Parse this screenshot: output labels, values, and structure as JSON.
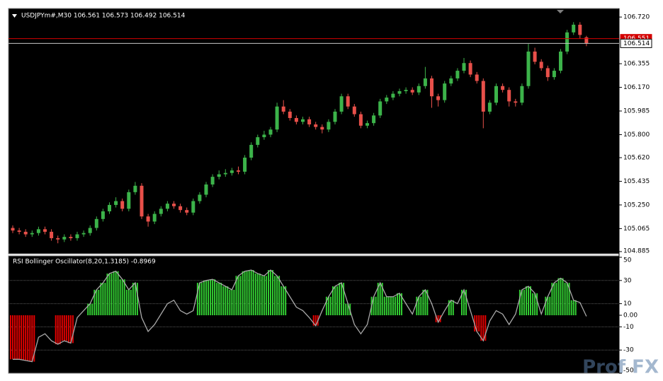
{
  "chart_data": [
    {
      "type": "candlestick",
      "title": "USDJPYm#,M30  106.561 106.573 106.492 106.514",
      "up_color": "#3cb34a",
      "down_color": "#e8504a",
      "ylim": [
        104.868,
        106.787
      ],
      "yticks": [
        {
          "value": 106.72,
          "label": "106.720"
        },
        106.355,
        {
          "value": 106.17,
          "label": "106.170"
        },
        105.985,
        {
          "value": 105.8,
          "label": "105.800"
        },
        {
          "value": 105.62,
          "label": "105.620"
        },
        105.435,
        {
          "value": 105.25,
          "label": "105.250"
        },
        105.065,
        104.885
      ],
      "price_lines": [
        {
          "value": 106.551,
          "color": "#d40000"
        },
        {
          "value": 106.514,
          "color": "#c8c8c8"
        }
      ],
      "open": [
        105.07,
        105.05,
        105.04,
        105.02,
        105.03,
        105.06,
        105.04,
        104.99,
        104.98,
        105.0,
        104.99,
        105.02,
        105.03,
        105.07,
        105.14,
        105.2,
        105.25,
        105.28,
        105.22,
        105.35,
        105.4,
        105.16,
        105.12,
        105.18,
        105.22,
        105.26,
        105.24,
        105.21,
        105.19,
        105.28,
        105.33,
        105.41,
        105.47,
        105.49,
        105.5,
        105.52,
        105.51,
        105.62,
        105.72,
        105.78,
        105.8,
        105.84,
        106.02,
        105.98,
        105.93,
        105.9,
        105.92,
        105.88,
        105.86,
        105.84,
        105.9,
        105.98,
        106.1,
        106.02,
        105.96,
        105.87,
        105.89,
        105.95,
        106.06,
        106.09,
        106.12,
        106.14,
        106.15,
        106.13,
        106.18,
        106.24,
        106.1,
        106.07,
        106.2,
        106.24,
        106.3,
        106.36,
        106.27,
        106.22,
        105.98,
        106.05,
        106.18,
        106.15,
        106.06,
        106.05,
        106.18,
        106.45,
        106.37,
        106.32,
        106.25,
        106.3,
        106.45,
        106.6,
        106.66,
        106.561
      ],
      "high": [
        105.09,
        105.07,
        105.06,
        105.05,
        105.08,
        105.08,
        105.06,
        105.01,
        105.02,
        105.02,
        105.04,
        105.05,
        105.09,
        105.16,
        105.22,
        105.27,
        105.31,
        105.3,
        105.37,
        105.43,
        105.42,
        105.18,
        105.2,
        105.24,
        105.28,
        105.28,
        105.26,
        105.23,
        105.3,
        105.35,
        105.43,
        105.49,
        105.52,
        105.53,
        105.54,
        105.55,
        105.64,
        105.74,
        105.8,
        105.83,
        105.86,
        106.05,
        106.07,
        106.0,
        105.95,
        105.94,
        105.94,
        105.9,
        105.88,
        105.92,
        106.0,
        106.12,
        106.12,
        106.04,
        105.98,
        105.91,
        105.97,
        106.08,
        106.11,
        106.14,
        106.16,
        106.17,
        106.17,
        106.2,
        106.33,
        106.26,
        106.12,
        106.22,
        106.26,
        106.32,
        106.4,
        106.38,
        106.29,
        106.24,
        106.07,
        106.2,
        106.2,
        106.17,
        106.08,
        106.2,
        106.51,
        106.48,
        106.39,
        106.34,
        106.32,
        106.47,
        106.62,
        106.68,
        106.68,
        106.573
      ],
      "low": [
        105.03,
        105.02,
        105.0,
        105.0,
        105.01,
        105.02,
        104.97,
        104.95,
        104.96,
        104.97,
        104.97,
        105.0,
        105.01,
        105.05,
        105.12,
        105.18,
        105.23,
        105.2,
        105.2,
        105.33,
        105.14,
        105.08,
        105.1,
        105.16,
        105.2,
        105.22,
        105.19,
        105.17,
        105.17,
        105.26,
        105.31,
        105.39,
        105.45,
        105.47,
        105.48,
        105.49,
        105.49,
        105.6,
        105.7,
        105.76,
        105.78,
        105.82,
        105.96,
        105.91,
        105.88,
        105.88,
        105.86,
        105.84,
        105.81,
        105.82,
        105.88,
        105.96,
        106.0,
        105.94,
        105.85,
        105.85,
        105.87,
        105.93,
        106.04,
        106.07,
        106.1,
        106.12,
        106.11,
        106.11,
        106.16,
        106.01,
        106.02,
        106.05,
        106.18,
        106.22,
        106.28,
        106.25,
        106.2,
        105.85,
        105.96,
        106.03,
        106.13,
        106.02,
        106.02,
        106.03,
        106.16,
        106.35,
        106.3,
        106.22,
        106.23,
        106.28,
        106.43,
        106.58,
        106.55,
        106.492
      ],
      "close": [
        105.05,
        105.04,
        105.02,
        105.03,
        105.06,
        105.04,
        104.99,
        104.98,
        105.0,
        104.99,
        105.02,
        105.03,
        105.07,
        105.14,
        105.2,
        105.25,
        105.28,
        105.22,
        105.35,
        105.4,
        105.16,
        105.12,
        105.18,
        105.22,
        105.26,
        105.24,
        105.21,
        105.19,
        105.28,
        105.33,
        105.41,
        105.47,
        105.49,
        105.5,
        105.52,
        105.51,
        105.62,
        105.72,
        105.78,
        105.8,
        105.84,
        106.02,
        105.98,
        105.93,
        105.9,
        105.92,
        105.88,
        105.86,
        105.84,
        105.9,
        105.98,
        106.1,
        106.02,
        105.96,
        105.87,
        105.89,
        105.95,
        106.06,
        106.09,
        106.12,
        106.14,
        106.15,
        106.13,
        106.18,
        106.24,
        106.1,
        106.07,
        106.2,
        106.24,
        106.3,
        106.36,
        106.27,
        106.22,
        105.98,
        106.05,
        106.18,
        106.15,
        106.06,
        106.05,
        106.18,
        106.45,
        106.37,
        106.32,
        106.25,
        106.3,
        106.45,
        106.6,
        106.66,
        106.58,
        106.514
      ]
    },
    {
      "type": "oscillator",
      "title": "RSI Bollinger Oscillator(8,20,1.3185) -0.8969",
      "ylim": [
        -50,
        50
      ],
      "yticks": [
        50,
        30,
        10,
        {
          "value": 0,
          "label": "0.00"
        },
        -10,
        -30,
        -50
      ],
      "levels": [
        30,
        10,
        -10,
        -30
      ],
      "line_color": "#a8a8a8",
      "up_color": "#32cd32",
      "down_color": "#e00000",
      "values": [
        -38,
        -38,
        -39,
        -40,
        -19,
        -16,
        -22,
        -25,
        -22,
        -24,
        -2,
        4,
        10,
        22,
        28,
        36,
        38,
        31,
        22,
        28,
        -2,
        -14,
        -8,
        1,
        10,
        13,
        4,
        1,
        4,
        28,
        30,
        31,
        28,
        25,
        22,
        34,
        38,
        39,
        36,
        34,
        39,
        34,
        25,
        16,
        7,
        4,
        -2,
        -9,
        4,
        16,
        25,
        28,
        10,
        -8,
        -16,
        -8,
        16,
        28,
        16,
        16,
        19,
        10,
        1,
        16,
        22,
        10,
        -6,
        4,
        13,
        10,
        22,
        4,
        -14,
        -22,
        -5,
        4,
        1,
        -8,
        1,
        22,
        25,
        19,
        1,
        16,
        28,
        32,
        28,
        13,
        11,
        -0.8969
      ],
      "bars": [
        -38,
        -38,
        -39,
        -40,
        null,
        null,
        null,
        -25,
        -22,
        -24,
        null,
        null,
        10,
        22,
        28,
        36,
        38,
        31,
        22,
        28,
        null,
        null,
        null,
        null,
        null,
        null,
        null,
        null,
        null,
        28,
        30,
        31,
        28,
        25,
        22,
        34,
        38,
        39,
        36,
        34,
        39,
        34,
        25,
        null,
        null,
        null,
        null,
        -9,
        null,
        16,
        25,
        28,
        10,
        null,
        null,
        null,
        16,
        28,
        16,
        16,
        19,
        null,
        null,
        16,
        22,
        null,
        -6,
        null,
        13,
        null,
        22,
        null,
        -14,
        -22,
        null,
        null,
        null,
        null,
        null,
        22,
        25,
        19,
        null,
        16,
        28,
        32,
        28,
        13,
        null,
        null
      ]
    }
  ],
  "watermark": "Prof FX"
}
